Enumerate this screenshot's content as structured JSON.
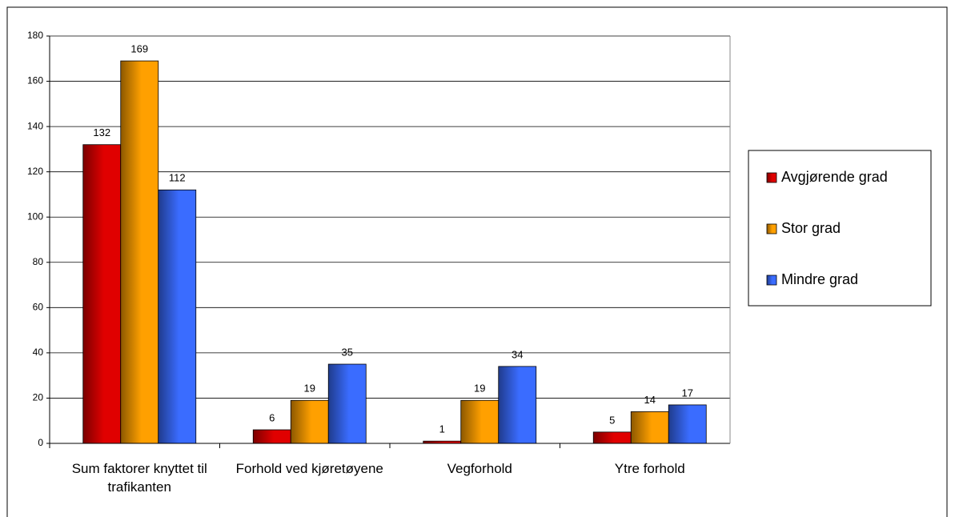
{
  "chart_data": {
    "type": "bar",
    "categories": [
      "Sum faktorer knyttet til trafikanten",
      "Forhold ved kjøretøyene",
      "Vegforhold",
      "Ytre forhold"
    ],
    "series": [
      {
        "name": "Avgjørende grad",
        "color": "#e00000",
        "values": [
          132,
          6,
          1,
          5
        ]
      },
      {
        "name": "Stor grad",
        "color": "#ffa000",
        "values": [
          169,
          19,
          19,
          14
        ]
      },
      {
        "name": "Mindre grad",
        "color": "#3a6cff",
        "values": [
          112,
          35,
          34,
          17
        ]
      }
    ],
    "ylim": [
      0,
      180
    ],
    "yticks": [
      0,
      20,
      40,
      60,
      80,
      100,
      120,
      140,
      160,
      180
    ],
    "grid": true,
    "legend": "right"
  }
}
